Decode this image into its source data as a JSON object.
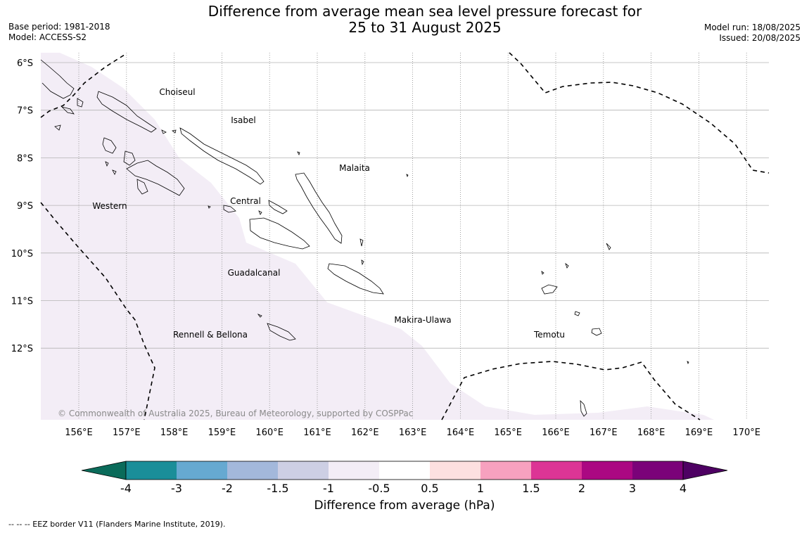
{
  "header": {
    "title_line1": "Difference from average mean sea level pressure forecast for",
    "title_line2": "25 to 31 August 2025",
    "base_period": "Base period: 1981-2018",
    "model": "Model: ACCESS-S2",
    "model_run": "Model run: 18/08/2025",
    "issued": "Issued: 20/08/2025"
  },
  "map": {
    "lat_labels": [
      "6°S",
      "7°S",
      "8°S",
      "9°S",
      "10°S",
      "11°S",
      "12°S"
    ],
    "lon_labels": [
      "156°E",
      "157°E",
      "158°E",
      "159°E",
      "160°E",
      "161°E",
      "162°E",
      "163°E",
      "164°E",
      "165°E",
      "166°E",
      "167°E",
      "168°E",
      "169°E",
      "170°E"
    ],
    "regions": [
      "Choiseul",
      "Isabel",
      "Malaita",
      "Western",
      "Central",
      "Guadalcanal",
      "Makira-Ulawa",
      "Rennell & Bellona",
      "Temotu"
    ],
    "copyright": "© Commonwealth of Australia 2025, Bureau of Meteorology, supported by COSPPac",
    "field_color": "#f3edf6",
    "eez_line_style": "dashed"
  },
  "colorbar": {
    "ticks": [
      "-4",
      "-3",
      "-2",
      "-1.5",
      "-1",
      "-0.5",
      "0.5",
      "1",
      "1.5",
      "2",
      "3",
      "4"
    ],
    "colors": [
      "#1a8e99",
      "#66a9d1",
      "#a3b8db",
      "#cdcfe4",
      "#f3edf6",
      "#ffffff",
      "#fde0e0",
      "#f7a1bf",
      "#dc3595",
      "#ab0882",
      "#7b0279"
    ],
    "under_color": "#0a6b5a",
    "over_color": "#4e0163",
    "label": "Difference from average (hPa)"
  },
  "footer": {
    "legend": "--  --  -- EEZ border V11 (Flanders Marine Institute, 2019)."
  }
}
